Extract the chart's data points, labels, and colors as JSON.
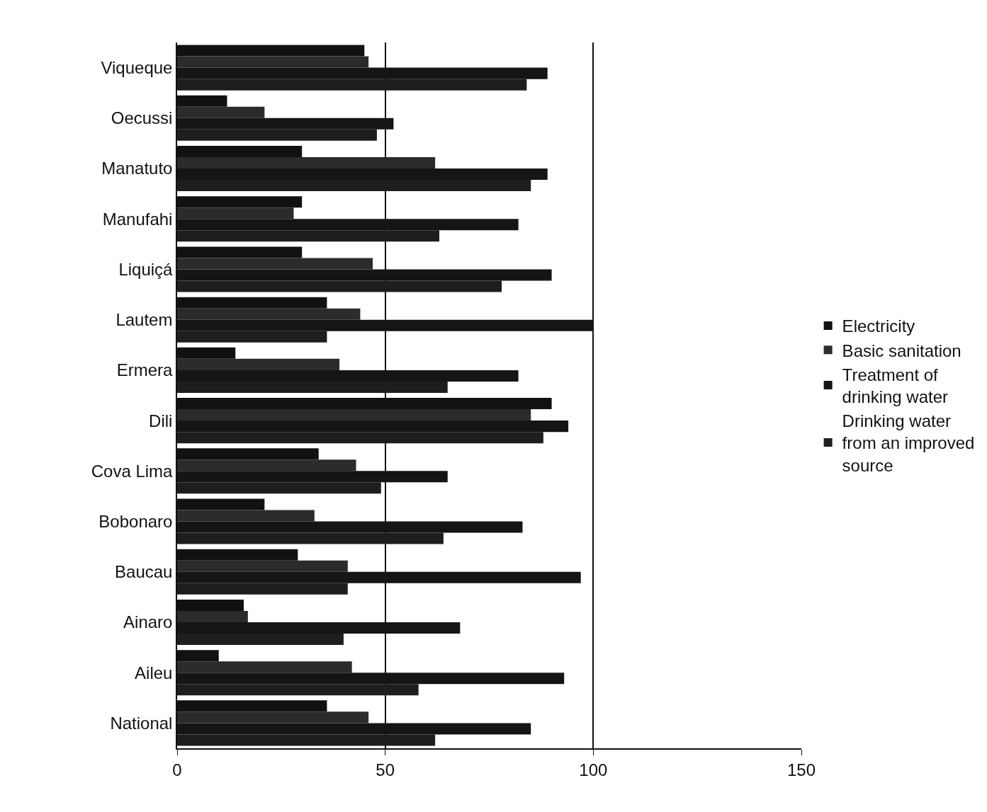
{
  "chart_data": {
    "type": "bar",
    "orientation": "horizontal",
    "categories": [
      "Viqueque",
      "Oecussi",
      "Manatuto",
      "Manufahi",
      "Liquiçá",
      "Lautem",
      "Ermera",
      "Dili",
      "Cova Lima",
      "Bobonaro",
      "Baucau",
      "Ainaro",
      "Aileu",
      "National"
    ],
    "series": [
      {
        "name": "Electricity",
        "color": "#111111",
        "values": [
          45,
          12,
          30,
          30,
          30,
          36,
          14,
          90,
          34,
          21,
          29,
          16,
          10,
          36
        ]
      },
      {
        "name": "Basic sanitation",
        "color": "#2b2b2b",
        "values": [
          46,
          21,
          62,
          28,
          47,
          44,
          39,
          85,
          43,
          33,
          41,
          17,
          42,
          46
        ]
      },
      {
        "name": "Treatment of drinking water",
        "color": "#151515",
        "values": [
          89,
          52,
          89,
          82,
          90,
          100,
          82,
          94,
          65,
          83,
          97,
          68,
          93,
          85
        ]
      },
      {
        "name": "Drinking water from an improved source",
        "color": "#1e1e1e",
        "values": [
          84,
          48,
          85,
          63,
          78,
          36,
          65,
          88,
          49,
          64,
          41,
          40,
          58,
          62
        ]
      }
    ],
    "xlim": [
      0,
      150
    ],
    "xticks": [
      0,
      50,
      100,
      150
    ],
    "grid": "x",
    "legend": "right"
  }
}
